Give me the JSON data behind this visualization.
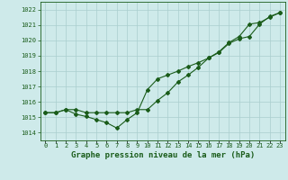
{
  "xlabel": "Graphe pression niveau de la mer (hPa)",
  "xlim": [
    -0.5,
    23.5
  ],
  "ylim": [
    1013.5,
    1022.5
  ],
  "yticks": [
    1014,
    1015,
    1016,
    1017,
    1018,
    1019,
    1020,
    1021,
    1022
  ],
  "xticks": [
    0,
    1,
    2,
    3,
    4,
    5,
    6,
    7,
    8,
    9,
    10,
    11,
    12,
    13,
    14,
    15,
    16,
    17,
    18,
    19,
    20,
    21,
    22,
    23
  ],
  "bg_color": "#ceeaea",
  "grid_color": "#aacece",
  "line_color": "#1a5c1a",
  "line1_x": [
    0,
    1,
    2,
    3,
    4,
    5,
    6,
    7,
    8,
    9,
    10,
    11,
    12,
    13,
    14,
    15,
    16,
    17,
    18,
    19,
    20,
    21,
    22,
    23
  ],
  "line1_y": [
    1015.3,
    1015.3,
    1015.5,
    1015.2,
    1015.05,
    1014.85,
    1014.65,
    1014.3,
    1014.85,
    1015.3,
    1016.8,
    1017.5,
    1017.75,
    1018.0,
    1018.3,
    1018.55,
    1018.85,
    1019.2,
    1019.8,
    1020.1,
    1020.25,
    1021.05,
    1021.55,
    1021.8
  ],
  "line2_x": [
    0,
    1,
    2,
    3,
    4,
    5,
    6,
    7,
    8,
    9,
    10,
    11,
    12,
    13,
    14,
    15,
    16,
    17,
    18,
    19,
    20,
    21,
    22,
    23
  ],
  "line2_y": [
    1015.3,
    1015.3,
    1015.5,
    1015.5,
    1015.3,
    1015.3,
    1015.3,
    1015.3,
    1015.3,
    1015.5,
    1015.5,
    1016.1,
    1016.6,
    1017.3,
    1017.75,
    1018.25,
    1018.85,
    1019.25,
    1019.85,
    1020.25,
    1021.05,
    1021.15,
    1021.5,
    1021.8
  ],
  "marker": "D",
  "markersize": 2.0,
  "linewidth": 0.8,
  "xlabel_fontsize": 6.5,
  "tick_fontsize": 5.0,
  "tick_color": "#1a5c1a",
  "xlabel_color": "#1a5c1a",
  "xlabel_bold": true
}
